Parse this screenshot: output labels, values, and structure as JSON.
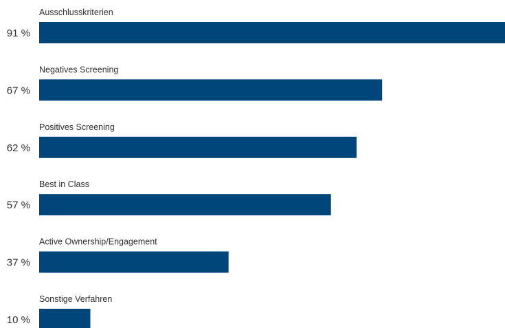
{
  "chart_data": {
    "type": "bar",
    "orientation": "horizontal",
    "categories": [
      "Ausschlusskriterien",
      "Negatives Screening",
      "Positives Screening",
      "Best in Class",
      "Active Ownership/Engagement",
      "Sonstige Verfahren"
    ],
    "values": [
      91,
      67,
      62,
      57,
      37,
      10
    ],
    "value_labels": [
      "91 %",
      "67 %",
      "62 %",
      "57 %",
      "37 %",
      "10 %"
    ],
    "unit": "%",
    "xlim": [
      0,
      91
    ],
    "grid": false,
    "legend": "none",
    "colors": {
      "bar": "#00467a",
      "text": "#2f2f2f",
      "background": "#ffffff"
    }
  }
}
